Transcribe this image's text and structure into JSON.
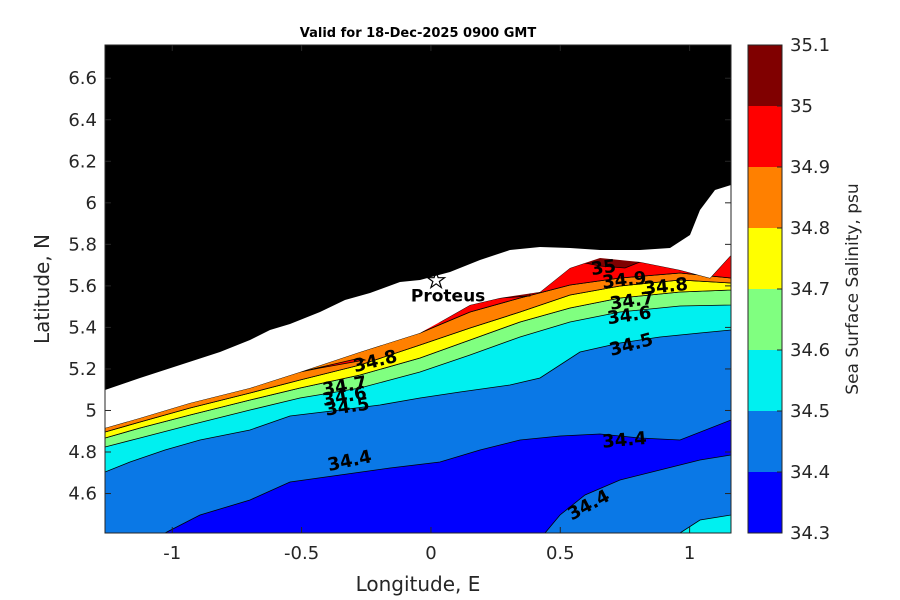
{
  "title": "Valid for 18-Dec-2025 0900 GMT",
  "xlabel": "Longitude, E",
  "ylabel": "Latitude, N",
  "xticks": [
    "-1",
    "-0.5",
    "0",
    "0.5",
    "1"
  ],
  "yticks": [
    "4.6",
    "4.8",
    "5",
    "5.2",
    "5.4",
    "5.6",
    "5.8",
    "6",
    "6.2",
    "6.4",
    "6.6"
  ],
  "colorbar": {
    "label": "Sea Surface Salinity, psu",
    "ticks": [
      "34.3",
      "34.4",
      "34.5",
      "34.6",
      "34.7",
      "34.8",
      "34.9",
      "35",
      "35.1"
    ],
    "colors": [
      "#0000ff",
      "#0a78e6",
      "#00f0f0",
      "#80ff80",
      "#ffff00",
      "#ff8000",
      "#ff0000",
      "#800000"
    ]
  },
  "station": {
    "name": "Proteus",
    "lon": 0.02,
    "lat": 5.63,
    "icon": "star-icon"
  },
  "contour_labels": [
    {
      "text": "34.4",
      "lon": -0.31,
      "lat": 4.73,
      "angle": -12
    },
    {
      "text": "34.4",
      "lon": 0.75,
      "lat": 4.83,
      "angle": -5
    },
    {
      "text": "34.4",
      "lon": 0.62,
      "lat": 4.52,
      "angle": -28
    },
    {
      "text": "34.5",
      "lon": -0.32,
      "lat": 4.99,
      "angle": -8
    },
    {
      "text": "34.5",
      "lon": 0.78,
      "lat": 5.29,
      "angle": -15
    },
    {
      "text": "34.6",
      "lon": -0.33,
      "lat": 5.04,
      "angle": -10
    },
    {
      "text": "34.6",
      "lon": 0.77,
      "lat": 5.43,
      "angle": -8
    },
    {
      "text": "34.7",
      "lon": -0.33,
      "lat": 5.09,
      "angle": -10
    },
    {
      "text": "34.7",
      "lon": 0.78,
      "lat": 5.5,
      "angle": -8
    },
    {
      "text": "34.8",
      "lon": -0.21,
      "lat": 5.21,
      "angle": -14
    },
    {
      "text": "34.8",
      "lon": 0.91,
      "lat": 5.57,
      "angle": -6
    },
    {
      "text": "34.9",
      "lon": 0.75,
      "lat": 5.6,
      "angle": -6
    },
    {
      "text": "35",
      "lon": 0.67,
      "lat": 5.66,
      "angle": -8
    }
  ]
}
